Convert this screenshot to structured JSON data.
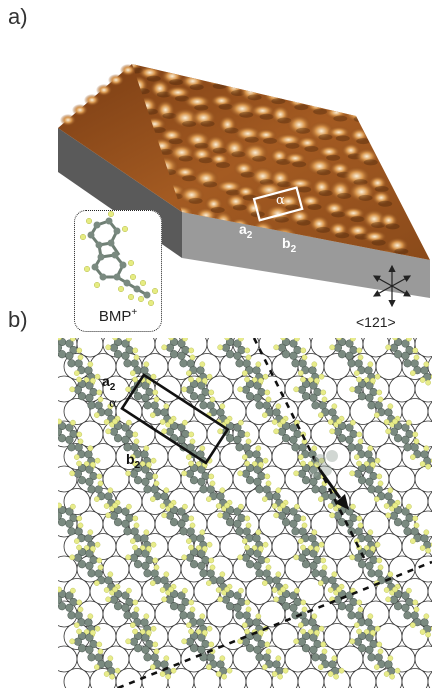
{
  "panels": {
    "a": {
      "label": "a)"
    },
    "b": {
      "label": "b)"
    }
  },
  "stm": {
    "cell_label_a": "a",
    "cell_label_a_sub": "2",
    "cell_label_b": "b",
    "cell_label_b_sub": "2",
    "angle_label": "α",
    "colors": {
      "light": "#f6e2bf",
      "mid": "#b36a2c",
      "dark": "#3f1f0a",
      "edge": "#8c8c8c"
    }
  },
  "inset": {
    "label": "BMP",
    "label_sup": "+"
  },
  "compass": {
    "direction_label": "<121>"
  },
  "lattice": {
    "cell_label_a": "a",
    "cell_label_a_sub": "2",
    "cell_label_b": "b",
    "cell_label_b_sub": "2",
    "angle_label": "α",
    "colors": {
      "carbon": "#7a8a80",
      "hydrogen": "#e8ec8a",
      "circle": "#333333"
    }
  }
}
